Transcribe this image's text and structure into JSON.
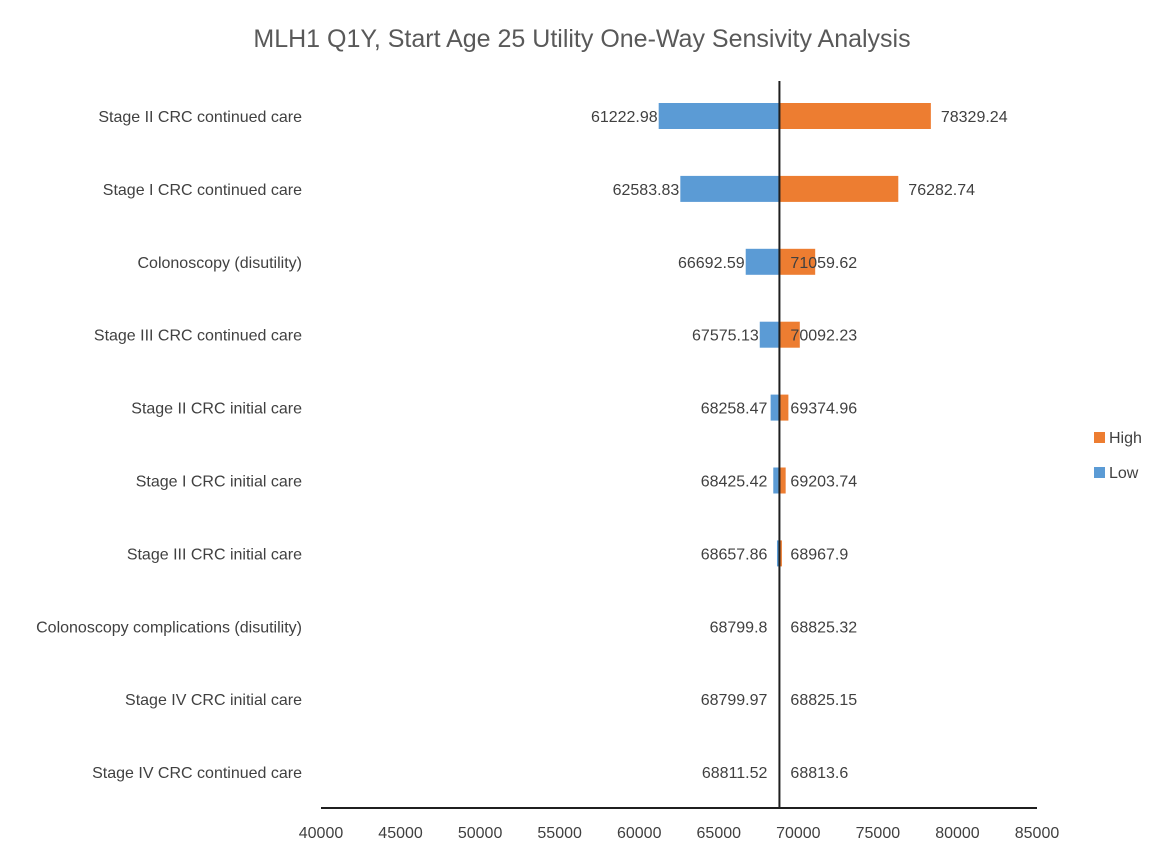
{
  "chart_data": {
    "type": "bar",
    "orientation": "horizontal",
    "subtype": "tornado",
    "title": "MLH1 Q1Y, Start Age 25 Utility One-Way Sensivity Analysis",
    "base_value": 68812,
    "categories": [
      "Stage II CRC continued care",
      "Stage I CRC continued care",
      "Colonoscopy (disutility)",
      "Stage III CRC continued care",
      "Stage II CRC initial care",
      "Stage I CRC initial care",
      "Stage III CRC initial care",
      "Colonoscopy complications (disutility)",
      "Stage IV CRC initial care",
      "Stage IV CRC continued care"
    ],
    "series": [
      {
        "name": "Low",
        "color": "#5B9BD5",
        "values": [
          61222.98,
          62583.83,
          66692.59,
          67575.13,
          68258.47,
          68425.42,
          68657.86,
          68799.8,
          68799.97,
          68811.52
        ]
      },
      {
        "name": "High",
        "color": "#ED7D31",
        "values": [
          78329.24,
          76282.74,
          71059.62,
          70092.23,
          69374.96,
          69203.74,
          68967.9,
          68825.32,
          68825.15,
          68813.6
        ]
      }
    ],
    "value_labels": {
      "low": [
        "61222.98",
        "62583.83",
        "66692.59",
        "67575.13",
        "68258.47",
        "68425.42",
        "68657.86",
        "68799.8",
        "68799.97",
        "68811.52"
      ],
      "high": [
        "78329.24",
        "76282.74",
        "71059.62",
        "70092.23",
        "69374.96",
        "69203.74",
        "68967.9",
        "68825.32",
        "68825.15",
        "68813.6"
      ]
    },
    "xlim": [
      40000,
      85000
    ],
    "xticks": [
      40000,
      45000,
      50000,
      55000,
      60000,
      65000,
      70000,
      75000,
      80000,
      85000
    ],
    "xtick_labels": [
      "40000",
      "45000",
      "50000",
      "55000",
      "60000",
      "65000",
      "70000",
      "75000",
      "80000",
      "85000"
    ],
    "legend": {
      "position": "right",
      "entries": [
        "High",
        "Low"
      ]
    },
    "grid": false
  }
}
